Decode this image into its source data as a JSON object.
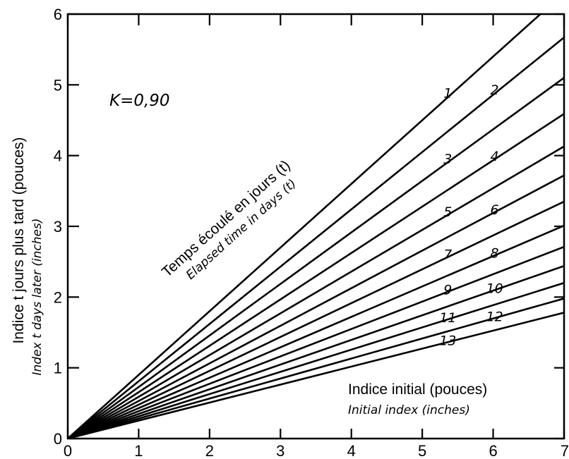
{
  "chart_data": {
    "type": "line",
    "parameter": "K=0,90",
    "xlim": [
      0,
      7
    ],
    "ylim": [
      0,
      6
    ],
    "x_ticks": [
      "0",
      "1",
      "2",
      "3",
      "4",
      "5",
      "6",
      "7"
    ],
    "y_ticks": [
      "0",
      "1",
      "2",
      "3",
      "4",
      "5",
      "6"
    ],
    "ylabel": "Indice t jours plus tard (pouces)",
    "ylabel_en": "Index t days later (inches)",
    "xlabel": "Indice initial (pouces)",
    "xlabel_en": "Initial index (inches)",
    "curve_family_label": "Temps écoulé en jours (t)",
    "curve_family_label_en": "Elapsed time in days (t)",
    "grid": false,
    "series": [
      {
        "name": "1",
        "x": [
          0,
          7
        ],
        "y": [
          0,
          6.3
        ]
      },
      {
        "name": "2",
        "x": [
          0,
          7
        ],
        "y": [
          0,
          5.67
        ]
      },
      {
        "name": "3",
        "x": [
          0,
          7
        ],
        "y": [
          0,
          5.1
        ]
      },
      {
        "name": "4",
        "x": [
          0,
          7
        ],
        "y": [
          0,
          4.59
        ]
      },
      {
        "name": "5",
        "x": [
          0,
          7
        ],
        "y": [
          0,
          4.13
        ]
      },
      {
        "name": "6",
        "x": [
          0,
          7
        ],
        "y": [
          0,
          3.72
        ]
      },
      {
        "name": "7",
        "x": [
          0,
          7
        ],
        "y": [
          0,
          3.35
        ]
      },
      {
        "name": "8",
        "x": [
          0,
          7
        ],
        "y": [
          0,
          3.01
        ]
      },
      {
        "name": "9",
        "x": [
          0,
          7
        ],
        "y": [
          0,
          2.71
        ]
      },
      {
        "name": "10",
        "x": [
          0,
          7
        ],
        "y": [
          0,
          2.44
        ]
      },
      {
        "name": "11",
        "x": [
          0,
          7
        ],
        "y": [
          0,
          2.2
        ]
      },
      {
        "name": "12",
        "x": [
          0,
          7
        ],
        "y": [
          0,
          1.98
        ]
      },
      {
        "name": "13",
        "x": [
          0,
          7
        ],
        "y": [
          0,
          1.78
        ]
      }
    ]
  }
}
